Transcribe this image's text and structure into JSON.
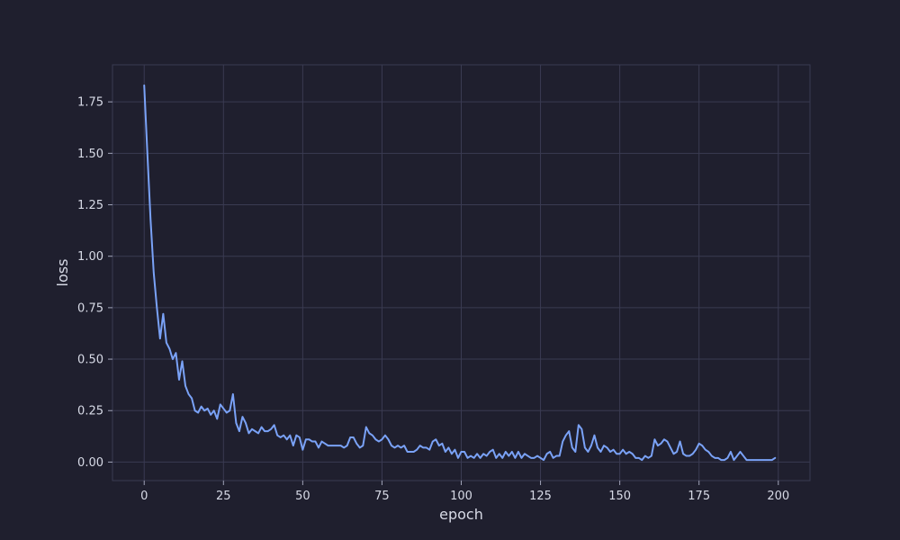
{
  "chart_data": {
    "type": "line",
    "title": "",
    "xlabel": "epoch",
    "ylabel": "loss",
    "xlim": [
      -10,
      210
    ],
    "ylim": [
      -0.09,
      1.93
    ],
    "xticks": [
      0,
      25,
      50,
      75,
      100,
      125,
      150,
      175,
      200
    ],
    "yticks": [
      0.0,
      0.25,
      0.5,
      0.75,
      1.0,
      1.25,
      1.5,
      1.75
    ],
    "grid": true,
    "legend": "none",
    "colors": {
      "background": "#1f1f2e",
      "line": "#7aa2f7",
      "grid": "#3a3b52",
      "text": "#d7dae6"
    },
    "series": [
      {
        "x": [
          0,
          1,
          2,
          3,
          4,
          5,
          6,
          7,
          8,
          9,
          10,
          11,
          12,
          13,
          14,
          15,
          16,
          17,
          18,
          19,
          20,
          21,
          22,
          23,
          24,
          25,
          26,
          27,
          28,
          29,
          30,
          31,
          32,
          33,
          34,
          35,
          36,
          37,
          38,
          39,
          40,
          41,
          42,
          43,
          44,
          45,
          46,
          47,
          48,
          49,
          50,
          51,
          52,
          53,
          54,
          55,
          56,
          57,
          58,
          59,
          60,
          61,
          62,
          63,
          64,
          65,
          66,
          67,
          68,
          69,
          70,
          71,
          72,
          73,
          74,
          75,
          76,
          77,
          78,
          79,
          80,
          81,
          82,
          83,
          84,
          85,
          86,
          87,
          88,
          89,
          90,
          91,
          92,
          93,
          94,
          95,
          96,
          97,
          98,
          99,
          100,
          101,
          102,
          103,
          104,
          105,
          106,
          107,
          108,
          109,
          110,
          111,
          112,
          113,
          114,
          115,
          116,
          117,
          118,
          119,
          120,
          121,
          122,
          123,
          124,
          125,
          126,
          127,
          128,
          129,
          130,
          131,
          132,
          133,
          134,
          135,
          136,
          137,
          138,
          139,
          140,
          141,
          142,
          143,
          144,
          145,
          146,
          147,
          148,
          149,
          150,
          151,
          152,
          153,
          154,
          155,
          156,
          157,
          158,
          159,
          160,
          161,
          162,
          163,
          164,
          165,
          166,
          167,
          168,
          169,
          170,
          171,
          172,
          173,
          174,
          175,
          176,
          177,
          178,
          179,
          180,
          181,
          182,
          183,
          184,
          185,
          186,
          187,
          188,
          189,
          190,
          191,
          192,
          193,
          194,
          195,
          196,
          197,
          198,
          199
        ],
        "values": [
          1.83,
          1.5,
          1.18,
          0.92,
          0.75,
          0.6,
          0.72,
          0.58,
          0.55,
          0.5,
          0.53,
          0.4,
          0.49,
          0.37,
          0.33,
          0.31,
          0.25,
          0.24,
          0.27,
          0.25,
          0.26,
          0.23,
          0.25,
          0.21,
          0.28,
          0.26,
          0.24,
          0.25,
          0.33,
          0.19,
          0.15,
          0.22,
          0.19,
          0.14,
          0.16,
          0.15,
          0.14,
          0.17,
          0.15,
          0.15,
          0.16,
          0.18,
          0.13,
          0.12,
          0.13,
          0.11,
          0.13,
          0.08,
          0.13,
          0.12,
          0.06,
          0.11,
          0.11,
          0.1,
          0.1,
          0.07,
          0.1,
          0.09,
          0.08,
          0.08,
          0.08,
          0.08,
          0.08,
          0.07,
          0.08,
          0.12,
          0.12,
          0.09,
          0.07,
          0.08,
          0.17,
          0.14,
          0.13,
          0.11,
          0.1,
          0.11,
          0.13,
          0.11,
          0.08,
          0.07,
          0.08,
          0.07,
          0.08,
          0.05,
          0.05,
          0.05,
          0.06,
          0.08,
          0.07,
          0.07,
          0.06,
          0.1,
          0.11,
          0.08,
          0.09,
          0.05,
          0.07,
          0.04,
          0.06,
          0.02,
          0.05,
          0.05,
          0.02,
          0.03,
          0.02,
          0.04,
          0.02,
          0.04,
          0.03,
          0.05,
          0.06,
          0.02,
          0.04,
          0.02,
          0.05,
          0.03,
          0.05,
          0.02,
          0.05,
          0.02,
          0.04,
          0.03,
          0.02,
          0.02,
          0.03,
          0.02,
          0.01,
          0.04,
          0.05,
          0.02,
          0.03,
          0.03,
          0.1,
          0.13,
          0.15,
          0.07,
          0.05,
          0.18,
          0.16,
          0.07,
          0.05,
          0.08,
          0.13,
          0.07,
          0.05,
          0.08,
          0.07,
          0.05,
          0.06,
          0.04,
          0.04,
          0.06,
          0.04,
          0.05,
          0.04,
          0.02,
          0.02,
          0.01,
          0.03,
          0.02,
          0.03,
          0.11,
          0.08,
          0.09,
          0.11,
          0.1,
          0.07,
          0.04,
          0.05,
          0.1,
          0.04,
          0.03,
          0.03,
          0.04,
          0.06,
          0.09,
          0.08,
          0.06,
          0.05,
          0.03,
          0.02,
          0.02,
          0.01,
          0.01,
          0.02,
          0.05,
          0.01,
          0.03,
          0.05,
          0.03,
          0.01,
          0.01,
          0.01,
          0.01,
          0.01,
          0.01,
          0.01,
          0.01,
          0.01,
          0.02
        ]
      }
    ]
  }
}
